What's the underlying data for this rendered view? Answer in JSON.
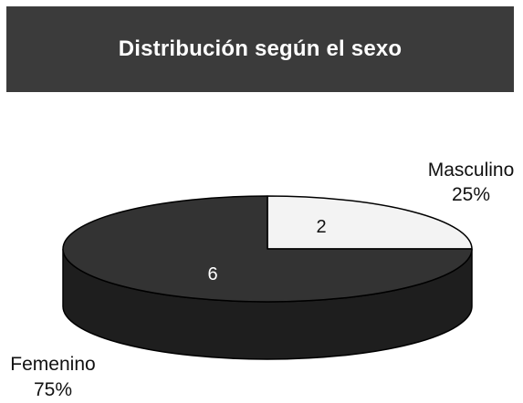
{
  "chart_data": {
    "type": "pie",
    "title": "Distribución según el sexo",
    "slices": [
      {
        "category": "Masculino",
        "value": 2,
        "percent": "25%",
        "color": "#f3f3f3"
      },
      {
        "category": "Femenino",
        "value": 6,
        "percent": "75%",
        "color": "#333333"
      }
    ],
    "style": "3d-tilted"
  },
  "colors": {
    "title_background": "#3b3b3b",
    "title_text": "#ffffff",
    "side_dark": "#1e1e1e",
    "side_light": "#b0b0b0"
  }
}
